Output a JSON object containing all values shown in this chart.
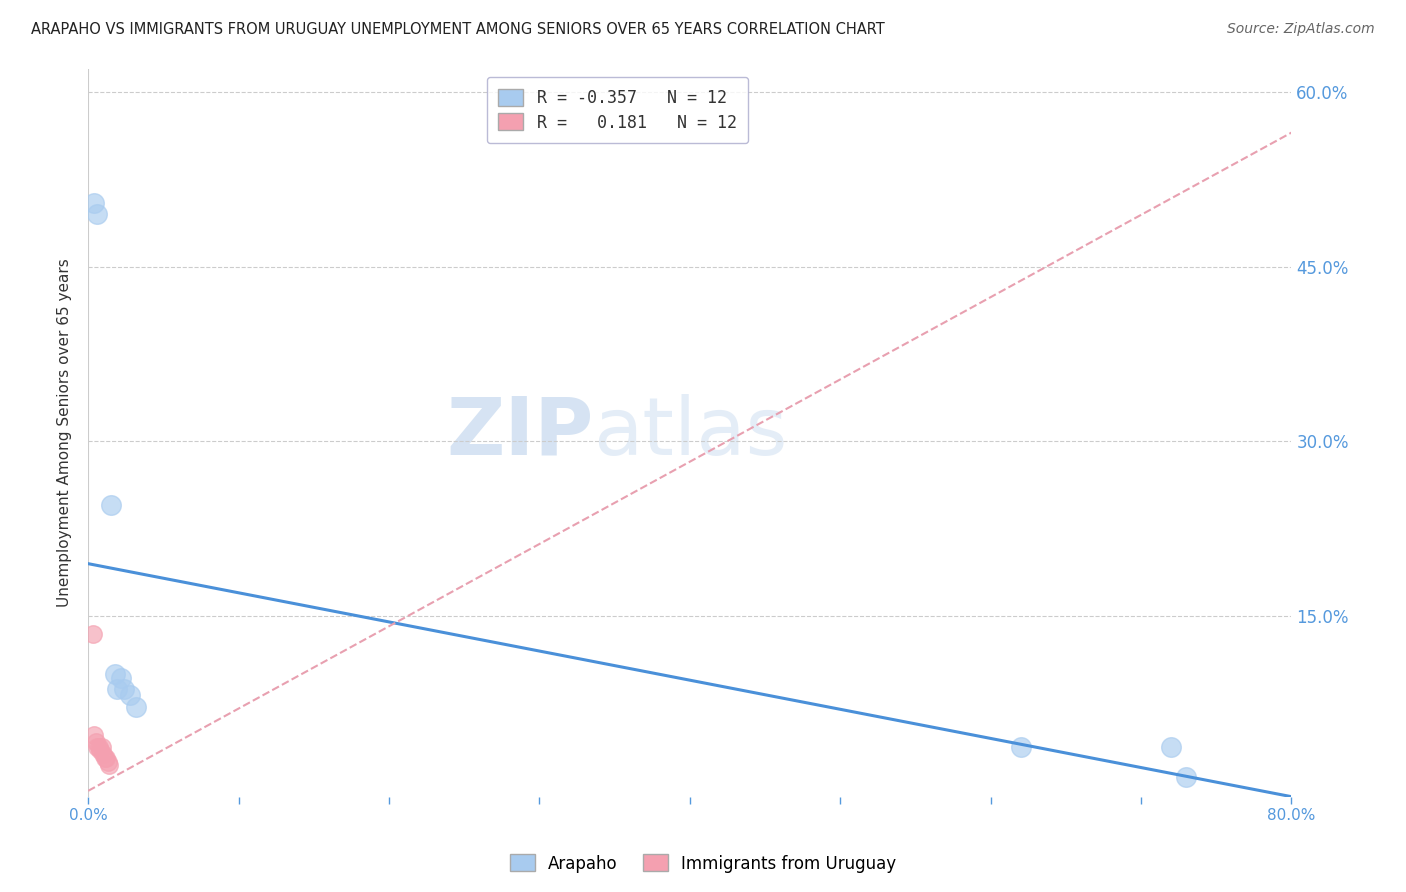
{
  "title": "ARAPAHO VS IMMIGRANTS FROM URUGUAY UNEMPLOYMENT AMONG SENIORS OVER 65 YEARS CORRELATION CHART",
  "source": "Source: ZipAtlas.com",
  "ylabel": "Unemployment Among Seniors over 65 years",
  "watermark_zip": "ZIP",
  "watermark_atlas": "atlas",
  "xlim": [
    0.0,
    0.8
  ],
  "ylim": [
    -0.005,
    0.62
  ],
  "xticks": [
    0.0,
    0.1,
    0.2,
    0.3,
    0.4,
    0.5,
    0.6,
    0.7,
    0.8
  ],
  "yticks": [
    0.0,
    0.15,
    0.3,
    0.45,
    0.6
  ],
  "arapaho_color": "#A8CBEF",
  "uruguay_color": "#F4A0B0",
  "arapaho_line_color": "#4A90D9",
  "uruguay_line_color": "#E8A0B0",
  "arapaho_R": -0.357,
  "arapaho_N": 12,
  "uruguay_R": 0.181,
  "uruguay_N": 12,
  "arapaho_x": [
    0.004,
    0.006,
    0.015,
    0.018,
    0.019,
    0.022,
    0.024,
    0.028,
    0.032,
    0.72,
    0.73,
    0.62
  ],
  "arapaho_y": [
    0.505,
    0.495,
    0.245,
    0.1,
    0.087,
    0.097,
    0.087,
    0.082,
    0.072,
    0.038,
    0.012,
    0.038
  ],
  "uruguay_x": [
    0.003,
    0.004,
    0.005,
    0.006,
    0.007,
    0.008,
    0.009,
    0.01,
    0.011,
    0.012,
    0.013,
    0.014
  ],
  "uruguay_y": [
    0.135,
    0.048,
    0.042,
    0.038,
    0.038,
    0.035,
    0.038,
    0.032,
    0.028,
    0.028,
    0.025,
    0.022
  ],
  "arapaho_line_x0": 0.0,
  "arapaho_line_y0": 0.195,
  "arapaho_line_x1": 0.8,
  "arapaho_line_y1": -0.005,
  "uruguay_line_x0": 0.0,
  "uruguay_line_y0": 0.0,
  "uruguay_line_x1": 0.8,
  "uruguay_line_y1": 0.565,
  "background_color": "#FFFFFF",
  "grid_color": "#CCCCCC",
  "tick_color": "#5599DD",
  "right_label_color": "#5599DD"
}
